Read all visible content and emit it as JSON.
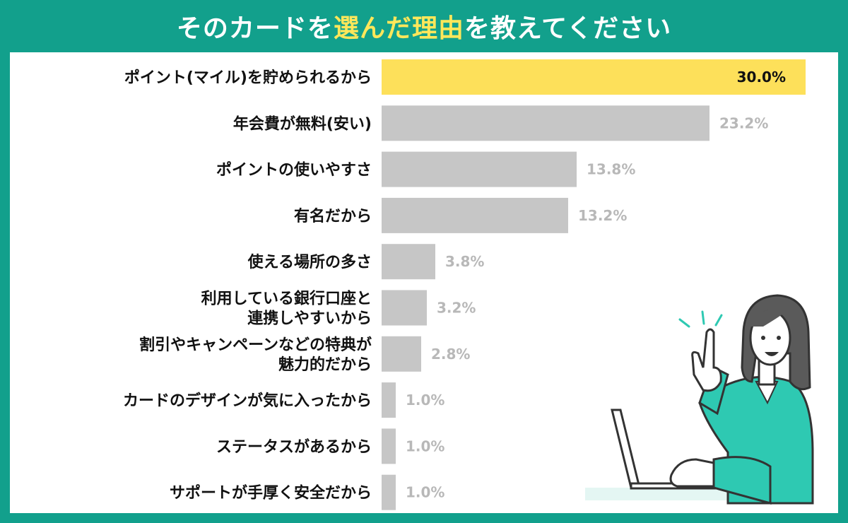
{
  "title": {
    "before": "そのカードを",
    "highlight": "選んだ理由",
    "after": "を教えてください"
  },
  "colors": {
    "frame": "#12a08c",
    "highlight_text": "#ffe75a",
    "top_bar": "#fde05a",
    "bar": "#c6c6c6",
    "illustration_jacket": "#2ec9b2"
  },
  "illustration": "woman-with-laptop-pointing-up",
  "chart_data": {
    "type": "bar",
    "orientation": "horizontal",
    "categories": [
      [
        "ポイント(マイル)を貯められるから"
      ],
      [
        "年会費が無料(安い)"
      ],
      [
        "ポイントの使いやすさ"
      ],
      [
        "有名だから"
      ],
      [
        "使える場所の多さ"
      ],
      [
        "利用している銀行口座と",
        "連携しやすいから"
      ],
      [
        "割引やキャンペーンなどの特典が",
        "魅力的だから"
      ],
      [
        "カードのデザインが気に入ったから"
      ],
      [
        "ステータスがあるから"
      ],
      [
        "サポートが手厚く安全だから"
      ]
    ],
    "values": [
      30.0,
      23.2,
      13.8,
      13.2,
      3.8,
      3.2,
      2.8,
      1.0,
      1.0,
      1.0
    ],
    "value_labels": [
      "30.0%",
      "23.2%",
      "13.8%",
      "13.2%",
      "3.8%",
      "3.2%",
      "2.8%",
      "1.0%",
      "1.0%",
      "1.0%"
    ],
    "unit": "%",
    "xlim": [
      0,
      30
    ]
  }
}
